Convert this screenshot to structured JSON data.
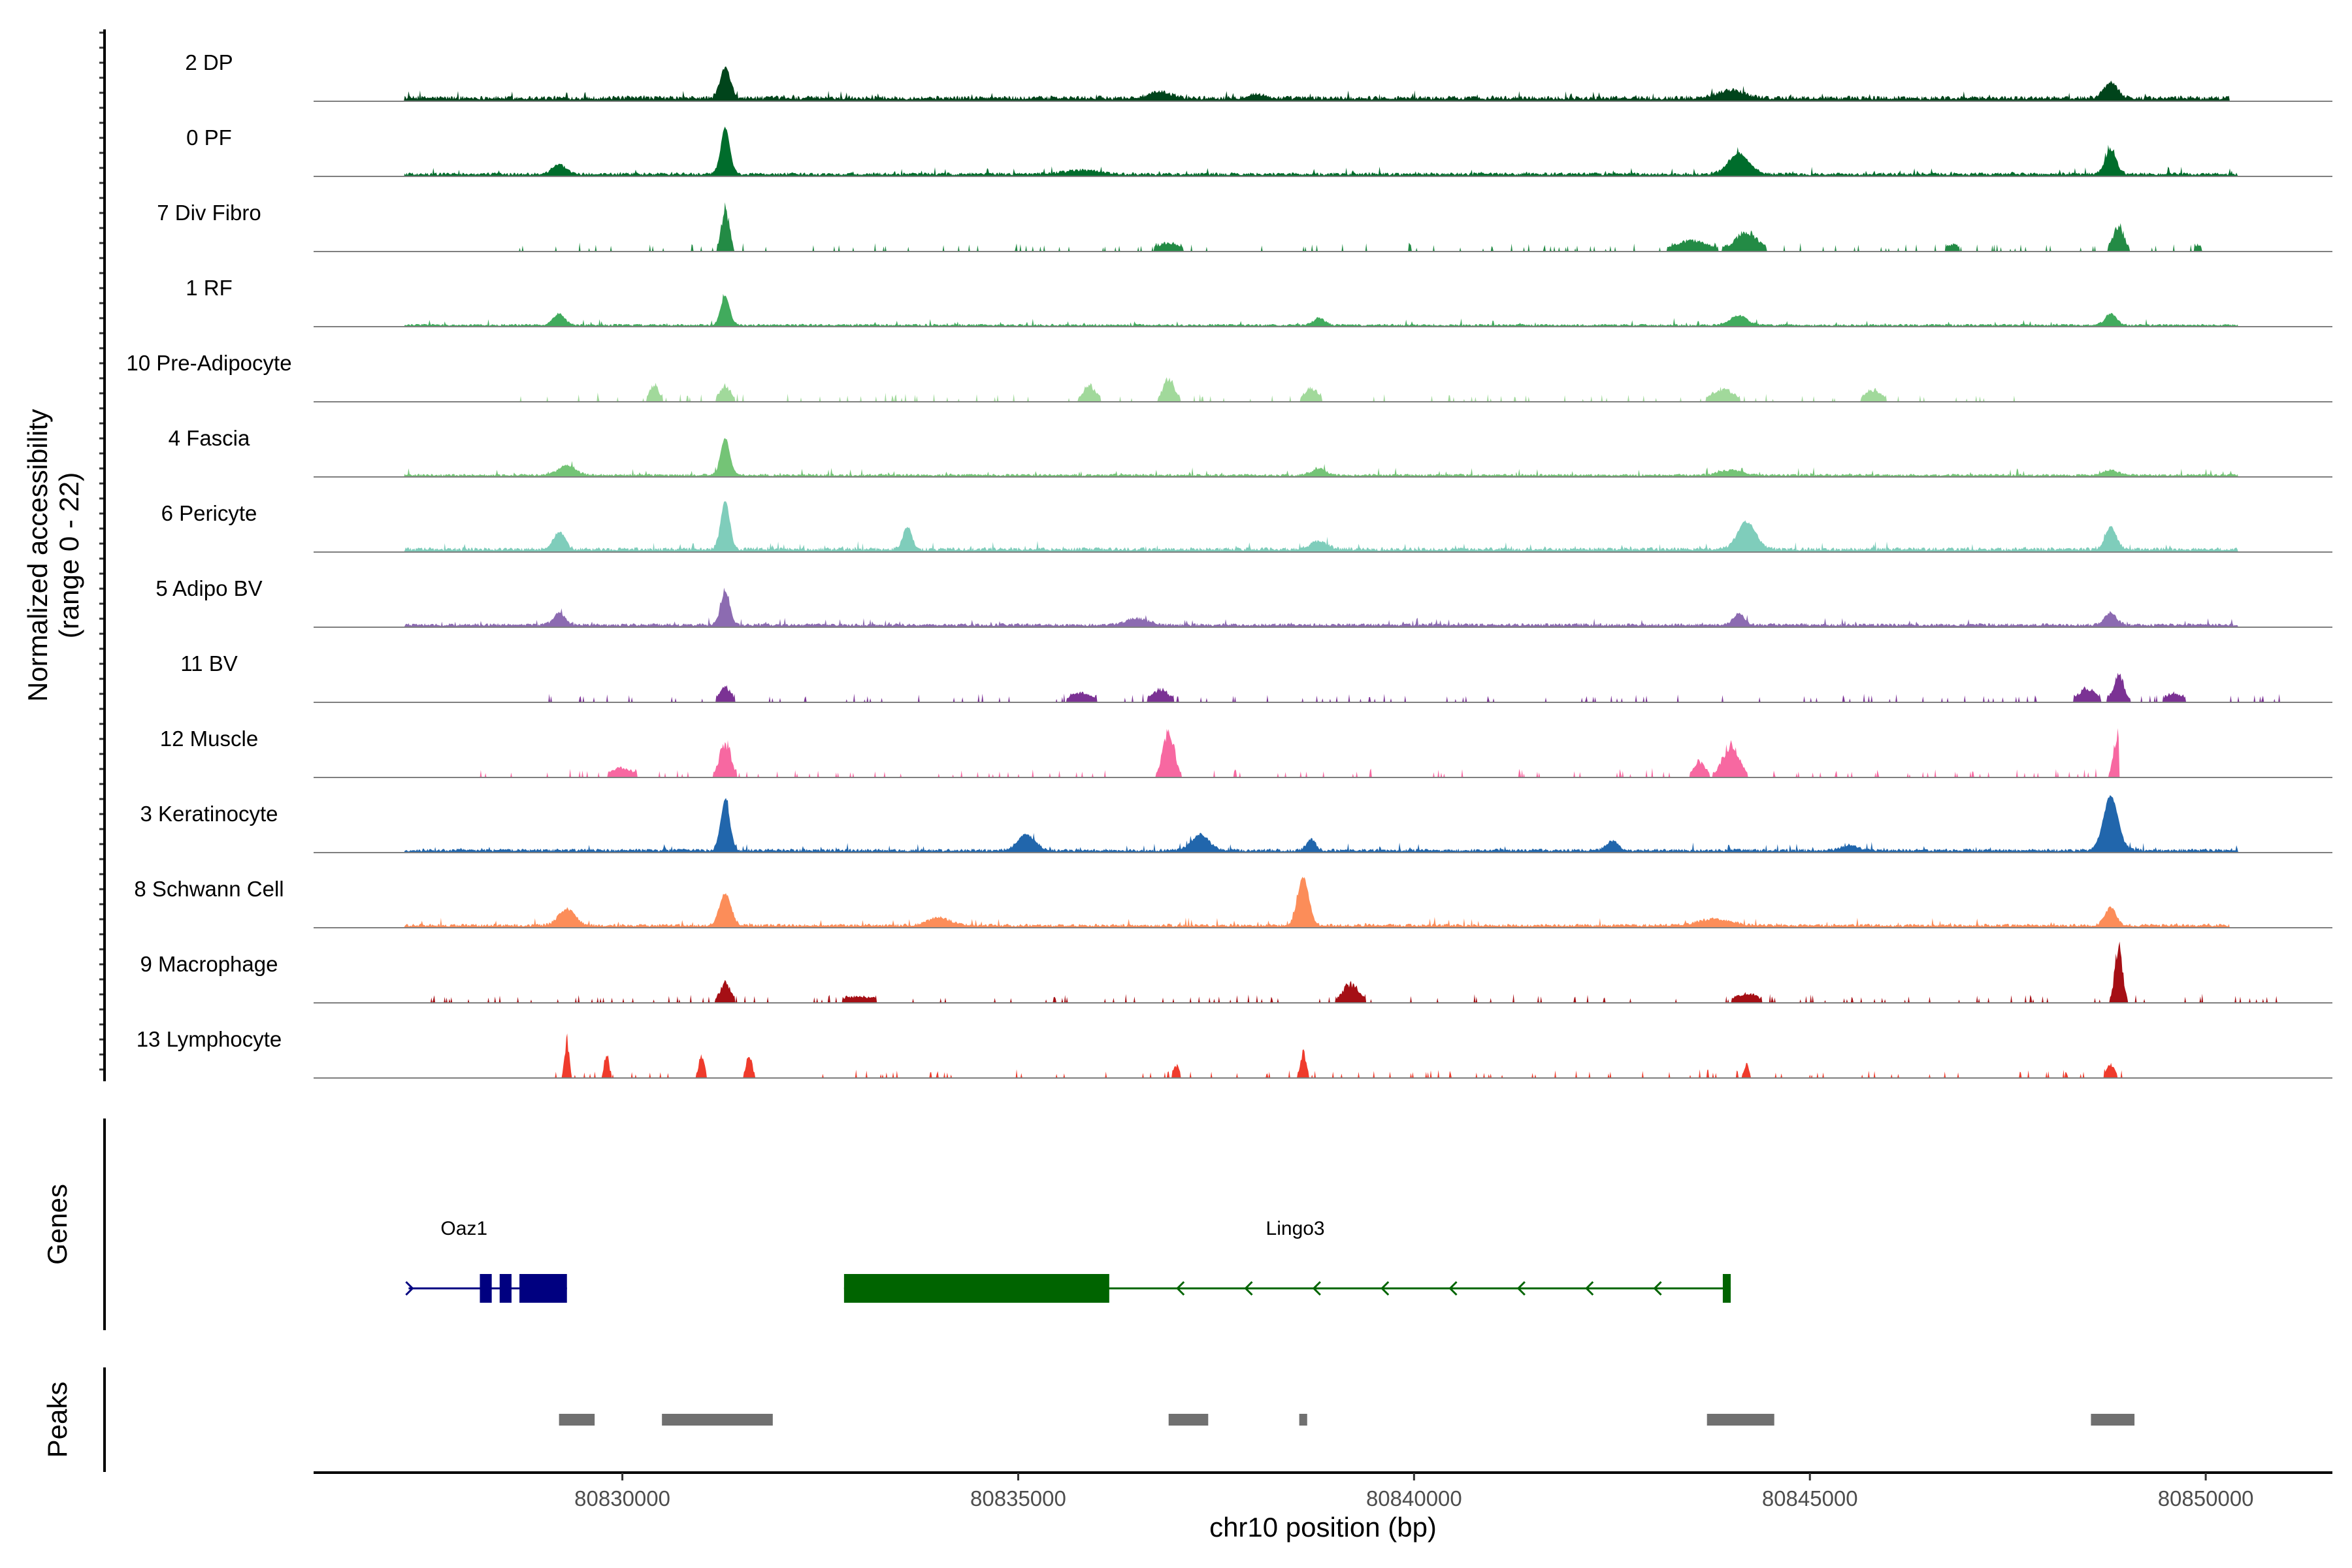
{
  "chart_data": {
    "type": "area",
    "title": "",
    "ylabel": "Normalized accessibility",
    "ylabel_range": "(range 0 - 22)",
    "xlabel": "chr10 position (bp)",
    "xlim": [
      80826100,
      80851600
    ],
    "ylim": [
      0,
      22
    ],
    "x_ticks": [
      80830000,
      80835000,
      80840000,
      80845000,
      80850000
    ],
    "x_tick_labels": [
      "80830000",
      "80835000",
      "80840000",
      "80845000",
      "80850000"
    ],
    "panel_labels": {
      "genes": "Genes",
      "peaks": "Peaks"
    },
    "tracks": [
      {
        "name": "2 DP",
        "color": "#00441b",
        "style": "continuous",
        "baseline": 1.4,
        "start": 80827250,
        "end": 80850300,
        "peaks": [
          [
            80831300,
            9.5,
            90
          ],
          [
            80836800,
            1.8,
            200
          ],
          [
            80838000,
            1.2,
            150
          ],
          [
            80844000,
            2.5,
            250
          ],
          [
            80848800,
            5.0,
            120
          ]
        ]
      },
      {
        "name": "0 PF",
        "color": "#006d2c",
        "style": "continuous",
        "baseline": 1.0,
        "start": 80827250,
        "end": 80850400,
        "peaks": [
          [
            80831300,
            14.5,
            80
          ],
          [
            80829200,
            3.0,
            120
          ],
          [
            80844100,
            6.5,
            180
          ],
          [
            80848800,
            7.5,
            100
          ],
          [
            80835800,
            1.3,
            300
          ]
        ]
      },
      {
        "name": "7 Div Fibro",
        "color": "#238b45",
        "style": "sparse",
        "start": 80828000,
        "end": 80850100,
        "peaks": [
          [
            80831300,
            14.0,
            70
          ],
          [
            80836900,
            2.8,
            200
          ],
          [
            80843500,
            3.5,
            300
          ],
          [
            80844200,
            6.0,
            200
          ],
          [
            80846800,
            2.2,
            120
          ],
          [
            80848900,
            8.0,
            100
          ],
          [
            80849900,
            1.8,
            80
          ]
        ]
      },
      {
        "name": "1 RF",
        "color": "#41ab5d",
        "style": "continuous",
        "baseline": 0.7,
        "start": 80827250,
        "end": 80850400,
        "peaks": [
          [
            80831300,
            9.0,
            80
          ],
          [
            80829200,
            3.6,
            100
          ],
          [
            80838800,
            2.2,
            100
          ],
          [
            80844100,
            3.0,
            150
          ],
          [
            80848800,
            3.6,
            100
          ]
        ]
      },
      {
        "name": "10 Pre-Adipocyte",
        "color": "#a1d99b",
        "style": "sparse",
        "start": 80828500,
        "end": 80847600,
        "peaks": [
          [
            80830400,
            5.5,
            80
          ],
          [
            80831300,
            5.0,
            100
          ],
          [
            80835900,
            5.0,
            120
          ],
          [
            80836900,
            7.5,
            100
          ],
          [
            80838700,
            4.5,
            120
          ],
          [
            80843900,
            4.0,
            200
          ],
          [
            80845800,
            3.8,
            150
          ]
        ]
      },
      {
        "name": "4 Fascia",
        "color": "#74c476",
        "style": "continuous",
        "baseline": 0.8,
        "start": 80827250,
        "end": 80850400,
        "peaks": [
          [
            80831300,
            11.5,
            80
          ],
          [
            80829300,
            3.0,
            150
          ],
          [
            80838800,
            2.0,
            120
          ],
          [
            80844000,
            1.5,
            200
          ],
          [
            80848800,
            1.6,
            120
          ]
        ]
      },
      {
        "name": "6 Pericyte",
        "color": "#7fcdbb",
        "style": "continuous",
        "baseline": 1.2,
        "start": 80827250,
        "end": 80850400,
        "peaks": [
          [
            80831300,
            15.0,
            80
          ],
          [
            80833600,
            7.0,
            80
          ],
          [
            80829200,
            5.5,
            100
          ],
          [
            80844200,
            8.5,
            160
          ],
          [
            80848800,
            7.0,
            100
          ],
          [
            80838800,
            2.5,
            150
          ]
        ]
      },
      {
        "name": "5 Adipo BV",
        "color": "#8c6bb1",
        "style": "continuous",
        "baseline": 1.0,
        "start": 80827250,
        "end": 80850400,
        "peaks": [
          [
            80831300,
            10.5,
            80
          ],
          [
            80829200,
            3.8,
            100
          ],
          [
            80844100,
            3.5,
            100
          ],
          [
            80848800,
            4.0,
            100
          ],
          [
            80836500,
            2.0,
            200
          ]
        ]
      },
      {
        "name": "11 BV",
        "color": "#7b3294",
        "style": "sparse",
        "start": 80829000,
        "end": 80851000,
        "peaks": [
          [
            80831300,
            5.0,
            100
          ],
          [
            80835800,
            3.0,
            200
          ],
          [
            80836800,
            4.0,
            150
          ],
          [
            80848500,
            4.5,
            150
          ],
          [
            80848900,
            8.0,
            100
          ],
          [
            80849600,
            3.0,
            150
          ]
        ]
      },
      {
        "name": "12 Muscle",
        "color": "#f768a1",
        "style": "sparse",
        "start": 80828100,
        "end": 80848900,
        "peaks": [
          [
            80831300,
            11.0,
            100
          ],
          [
            80836900,
            15.0,
            100
          ],
          [
            80844000,
            10.0,
            150
          ],
          [
            80848900,
            15.5,
            80
          ],
          [
            80830000,
            3.0,
            200
          ],
          [
            80843600,
            5.0,
            100
          ]
        ]
      },
      {
        "name": "3 Keratinocyte",
        "color": "#2166ac",
        "style": "continuous",
        "baseline": 1.0,
        "start": 80827250,
        "end": 80850400,
        "peaks": [
          [
            80831300,
            16.0,
            80
          ],
          [
            80848800,
            17.0,
            130
          ],
          [
            80837300,
            5.0,
            150
          ],
          [
            80835100,
            5.0,
            150
          ],
          [
            80838700,
            3.5,
            80
          ],
          [
            80842500,
            3.0,
            100
          ],
          [
            80845500,
            1.5,
            150
          ]
        ]
      },
      {
        "name": "8 Schwann Cell",
        "color": "#fc8d59",
        "style": "continuous",
        "baseline": 1.0,
        "start": 80827250,
        "end": 80850300,
        "peaks": [
          [
            80831300,
            10.0,
            100
          ],
          [
            80838600,
            15.0,
            100
          ],
          [
            80829300,
            5.0,
            150
          ],
          [
            80848800,
            5.5,
            100
          ],
          [
            80834000,
            2.5,
            200
          ],
          [
            80843800,
            2.0,
            300
          ]
        ]
      },
      {
        "name": "9 Macrophage",
        "color": "#a50f15",
        "style": "sparse",
        "start": 80827250,
        "end": 80851000,
        "peaks": [
          [
            80848900,
            17.0,
            70
          ],
          [
            80831300,
            6.0,
            100
          ],
          [
            80839200,
            6.0,
            150
          ],
          [
            80844200,
            3.0,
            200
          ],
          [
            80833000,
            2.0,
            300
          ]
        ]
      },
      {
        "name": "13 Lymphocyte",
        "color": "#ef3b2c",
        "style": "sparse",
        "start": 80829000,
        "end": 80849000,
        "peaks": [
          [
            80829300,
            12.0,
            40
          ],
          [
            80829800,
            8.0,
            40
          ],
          [
            80831600,
            8.0,
            50
          ],
          [
            80831000,
            7.0,
            50
          ],
          [
            80838600,
            8.0,
            50
          ],
          [
            80837000,
            4.0,
            50
          ],
          [
            80844200,
            4.0,
            50
          ],
          [
            80848800,
            4.0,
            80
          ]
        ]
      }
    ],
    "genes": [
      {
        "name": "Oaz1",
        "color": "#000080",
        "strand": "+",
        "label_x": 80828000,
        "start": 80827300,
        "end": 80829300,
        "exons": [
          [
            80828200,
            80828350
          ],
          [
            80828450,
            80828600
          ],
          [
            80828700,
            80829300
          ]
        ]
      },
      {
        "name": "Lingo3",
        "color": "#006400",
        "strand": "-",
        "label_x": 80838500,
        "start": 80832800,
        "end": 80844000,
        "exons": [
          [
            80832800,
            80836150
          ],
          [
            80843900,
            80844000
          ]
        ]
      }
    ],
    "peak_regions": [
      [
        80829200,
        80829650
      ],
      [
        80830500,
        80831900
      ],
      [
        80836900,
        80837400
      ],
      [
        80838550,
        80838650
      ],
      [
        80843700,
        80844550
      ],
      [
        80848550,
        80849100
      ]
    ]
  }
}
